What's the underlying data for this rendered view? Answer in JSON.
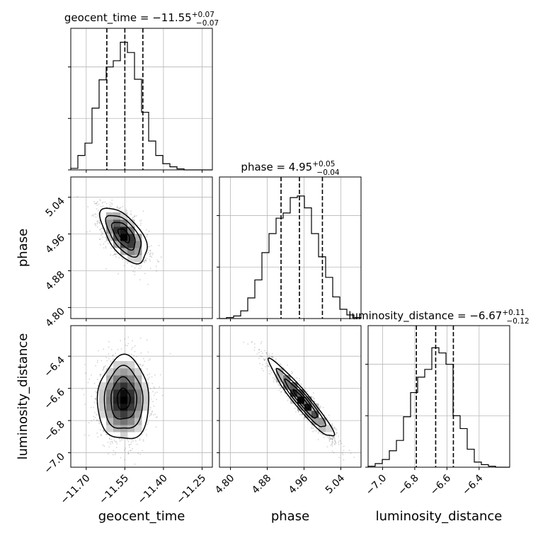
{
  "chart_data": {
    "type": "corner",
    "parameters": [
      "geocent_time",
      "phase",
      "luminosity_distance"
    ],
    "titles": [
      {
        "label": "geocent_time = ",
        "median": "−11.55",
        "upper": "+0.07",
        "lower": "−0.07"
      },
      {
        "label": "phase = ",
        "median": "4.95",
        "upper": "+0.05",
        "lower": "−0.04"
      },
      {
        "label": "luminosity_distance = ",
        "median": "−6.67",
        "upper": "+0.11",
        "lower": "−0.12"
      }
    ],
    "axes": [
      {
        "name": "geocent_time",
        "range": [
          -11.76,
          -11.21
        ],
        "ticks": [
          -11.7,
          -11.55,
          -11.4,
          -11.25
        ],
        "tick_labels": [
          "−11.70",
          "−11.55",
          "−11.40",
          "−11.25"
        ]
      },
      {
        "name": "phase",
        "range": [
          4.776,
          5.084
        ],
        "ticks": [
          4.8,
          4.88,
          4.96,
          5.04
        ],
        "tick_labels": [
          "4.80",
          "4.88",
          "4.96",
          "5.04"
        ]
      },
      {
        "name": "luminosity_distance",
        "range": [
          -7.09,
          -6.21
        ],
        "ticks": [
          -7.0,
          -6.8,
          -6.6,
          -6.4
        ],
        "tick_labels": [
          "−7.0",
          "−6.8",
          "−6.6",
          "−6.4"
        ]
      }
    ],
    "quantiles": [
      [
        -11.62,
        -11.55,
        -11.48
      ],
      [
        4.91,
        4.95,
        5.0
      ],
      [
        -6.79,
        -6.67,
        -6.56
      ]
    ],
    "histograms": [
      {
        "param": "geocent_time",
        "bin_edges": [
          -11.76,
          -11.7325,
          -11.705,
          -11.6775,
          -11.65,
          -11.6225,
          -11.595,
          -11.5675,
          -11.54,
          -11.5125,
          -11.485,
          -11.4575,
          -11.43,
          -11.4025,
          -11.375,
          -11.3475,
          -11.32,
          -11.2925,
          -11.265,
          -11.2375,
          -11.21
        ],
        "counts": [
          3,
          28,
          52,
          120,
          175,
          200,
          212,
          248,
          228,
          176,
          112,
          56,
          28,
          12,
          6,
          2,
          0,
          0,
          0,
          0
        ]
      },
      {
        "param": "phase",
        "bin_edges": [
          4.776,
          4.7914,
          4.8068,
          4.8222,
          4.8376,
          4.853,
          4.8684,
          4.8838,
          4.8992,
          4.9146,
          4.93,
          4.9454,
          4.9608,
          4.9762,
          4.9916,
          5.007,
          5.0224,
          5.0378,
          5.0532,
          5.0686,
          5.084
        ],
        "counts": [
          0,
          2,
          5,
          15,
          40,
          75,
          128,
          165,
          195,
          205,
          235,
          238,
          215,
          165,
          120,
          80,
          42,
          18,
          7,
          2
        ]
      },
      {
        "param": "luminosity_distance",
        "bin_edges": [
          -7.09,
          -7.046,
          -7.002,
          -6.958,
          -6.914,
          -6.87,
          -6.826,
          -6.782,
          -6.738,
          -6.694,
          -6.65,
          -6.606,
          -6.562,
          -6.518,
          -6.474,
          -6.43,
          -6.386,
          -6.342,
          -6.298,
          -6.254,
          -6.21
        ],
        "counts": [
          2,
          7,
          15,
          32,
          52,
          98,
          145,
          175,
          190,
          232,
          222,
          200,
          100,
          75,
          35,
          10,
          5,
          2,
          0,
          0
        ]
      }
    ],
    "hist_ylim": [
      0,
      275
    ],
    "hist_y_gridlines": [
      0,
      100,
      200
    ],
    "joint_panels": [
      {
        "x": "geocent_time",
        "y": "phase",
        "center": [
          -11.553,
          4.957
        ],
        "sd": [
          0.045,
          0.03
        ],
        "correlation": -0.6
      },
      {
        "x": "geocent_time",
        "y": "luminosity_distance",
        "center": [
          -11.555,
          -6.667
        ],
        "sd": [
          0.05,
          0.13
        ],
        "correlation": 0.0
      },
      {
        "x": "phase",
        "y": "luminosity_distance",
        "center": [
          4.955,
          -6.67
        ],
        "sd": [
          0.035,
          0.12
        ],
        "correlation": -0.95
      }
    ],
    "contour_levels_sigma": [
      0.5,
      1.0,
      1.5,
      2.0
    ],
    "grid": true
  }
}
